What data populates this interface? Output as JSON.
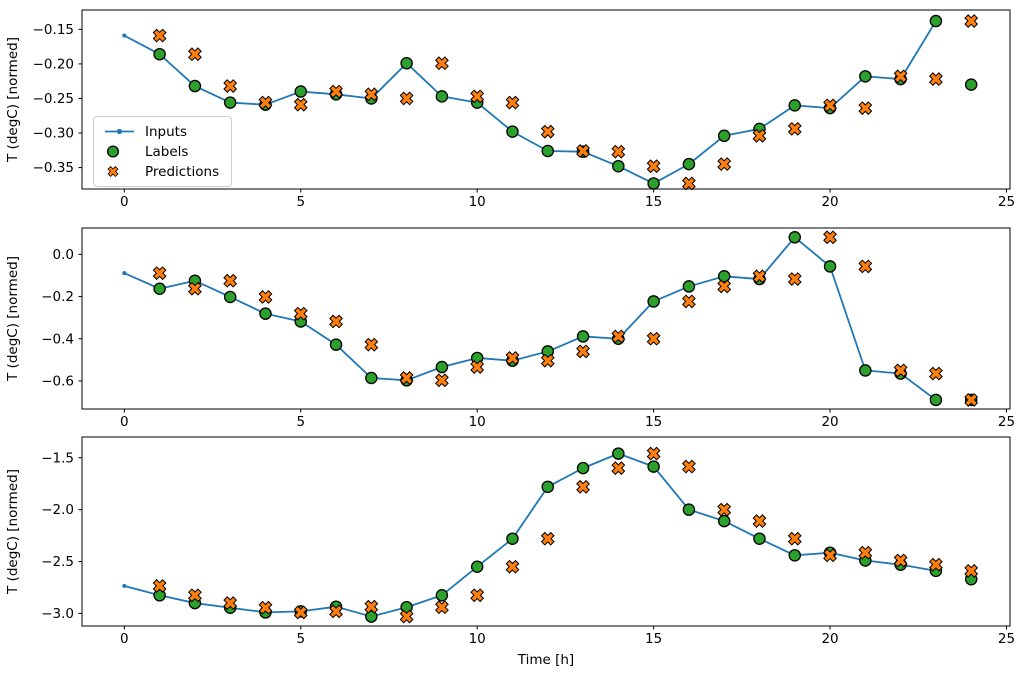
{
  "figure": {
    "background": "#ffffff",
    "frame_color": "#000000",
    "legend": {
      "items": [
        {
          "label": "Inputs",
          "marker": "line-with-dot",
          "color": "#1f77b4"
        },
        {
          "label": "Labels",
          "marker": "filled-circle",
          "color": "#2ca02c",
          "edge_color": "#000000"
        },
        {
          "label": "Predictions",
          "marker": "x-cross",
          "color": "#ff7f0e",
          "edge_color": "#000000"
        }
      ],
      "position": "upper-left-inside-first-subplot"
    }
  },
  "chart_data": [
    {
      "type": "line",
      "title": "",
      "ylabel": "T (degC) [normed]",
      "xlabel": "",
      "grid": false,
      "xlim": [
        -1.2,
        25.1
      ],
      "ylim": [
        -0.381,
        -0.122
      ],
      "xticks": [
        0,
        5,
        10,
        15,
        20,
        25
      ],
      "xtick_labels": [
        "0",
        "5",
        "10",
        "15",
        "20",
        "25"
      ],
      "yticks": [
        -0.15,
        -0.2,
        -0.25,
        -0.3,
        -0.35
      ],
      "ytick_labels": [
        "−0.15",
        "−0.20",
        "−0.25",
        "−0.30",
        "−0.35"
      ],
      "series": [
        {
          "name": "Inputs",
          "style": "line-with-dot",
          "color": "#1f77b4",
          "x": [
            0,
            1,
            2,
            3,
            4,
            5,
            6,
            7,
            8,
            9,
            10,
            11,
            12,
            13,
            14,
            15,
            16,
            17,
            18,
            19,
            20,
            21,
            22,
            23
          ],
          "y": [
            -0.159,
            -0.186,
            -0.232,
            -0.256,
            -0.259,
            -0.24,
            -0.244,
            -0.25,
            -0.199,
            -0.247,
            -0.256,
            -0.298,
            -0.326,
            -0.327,
            -0.348,
            -0.373,
            -0.345,
            -0.304,
            -0.294,
            -0.26,
            -0.264,
            -0.218,
            -0.222,
            -0.138
          ]
        },
        {
          "name": "Labels",
          "style": "filled-circle",
          "color": "#2ca02c",
          "edge_color": "#000000",
          "x": [
            1,
            2,
            3,
            4,
            5,
            6,
            7,
            8,
            9,
            10,
            11,
            12,
            13,
            14,
            15,
            16,
            17,
            18,
            19,
            20,
            21,
            22,
            23,
            24
          ],
          "y": [
            -0.186,
            -0.232,
            -0.256,
            -0.259,
            -0.24,
            -0.244,
            -0.25,
            -0.199,
            -0.247,
            -0.256,
            -0.298,
            -0.326,
            -0.327,
            -0.348,
            -0.373,
            -0.345,
            -0.304,
            -0.294,
            -0.26,
            -0.264,
            -0.218,
            -0.222,
            -0.138,
            -0.23
          ]
        },
        {
          "name": "Predictions",
          "style": "x-cross",
          "color": "#ff7f0e",
          "edge_color": "#000000",
          "x": [
            1,
            2,
            3,
            4,
            5,
            6,
            7,
            8,
            9,
            10,
            11,
            12,
            13,
            14,
            15,
            16,
            17,
            18,
            19,
            20,
            21,
            22,
            23,
            24
          ],
          "y": [
            -0.159,
            -0.186,
            -0.232,
            -0.256,
            -0.259,
            -0.24,
            -0.244,
            -0.25,
            -0.199,
            -0.247,
            -0.256,
            -0.298,
            -0.326,
            -0.327,
            -0.348,
            -0.373,
            -0.345,
            -0.304,
            -0.294,
            -0.26,
            -0.264,
            -0.218,
            -0.222,
            -0.138
          ]
        }
      ]
    },
    {
      "type": "line",
      "title": "",
      "ylabel": "T (degC) [normed]",
      "xlabel": "",
      "grid": false,
      "xlim": [
        -1.2,
        25.1
      ],
      "ylim": [
        -0.733,
        0.125
      ],
      "xticks": [
        0,
        5,
        10,
        15,
        20,
        25
      ],
      "xtick_labels": [
        "0",
        "5",
        "10",
        "15",
        "20",
        "25"
      ],
      "yticks": [
        0.0,
        -0.2,
        -0.4,
        -0.6
      ],
      "ytick_labels": [
        "0.0",
        "−0.2",
        "−0.4",
        "−0.6"
      ],
      "series": [
        {
          "name": "Inputs",
          "style": "line-with-dot",
          "color": "#1f77b4",
          "x": [
            0,
            1,
            2,
            3,
            4,
            5,
            6,
            7,
            8,
            9,
            10,
            11,
            12,
            13,
            14,
            15,
            16,
            17,
            18,
            19,
            20,
            21,
            22,
            23
          ],
          "y": [
            -0.089,
            -0.163,
            -0.125,
            -0.202,
            -0.281,
            -0.318,
            -0.428,
            -0.586,
            -0.597,
            -0.534,
            -0.491,
            -0.504,
            -0.46,
            -0.389,
            -0.4,
            -0.223,
            -0.152,
            -0.104,
            -0.117,
            0.081,
            -0.057,
            -0.55,
            -0.565,
            -0.69
          ]
        },
        {
          "name": "Labels",
          "style": "filled-circle",
          "color": "#2ca02c",
          "edge_color": "#000000",
          "x": [
            1,
            2,
            3,
            4,
            5,
            6,
            7,
            8,
            9,
            10,
            11,
            12,
            13,
            14,
            15,
            16,
            17,
            18,
            19,
            20,
            21,
            22,
            23,
            24
          ],
          "y": [
            -0.163,
            -0.125,
            -0.202,
            -0.281,
            -0.318,
            -0.428,
            -0.586,
            -0.597,
            -0.534,
            -0.491,
            -0.504,
            -0.46,
            -0.389,
            -0.4,
            -0.223,
            -0.152,
            -0.104,
            -0.117,
            0.081,
            -0.057,
            -0.55,
            -0.565,
            -0.69,
            -0.69
          ]
        },
        {
          "name": "Predictions",
          "style": "x-cross",
          "color": "#ff7f0e",
          "edge_color": "#000000",
          "x": [
            1,
            2,
            3,
            4,
            5,
            6,
            7,
            8,
            9,
            10,
            11,
            12,
            13,
            14,
            15,
            16,
            17,
            18,
            19,
            20,
            21,
            22,
            23,
            24
          ],
          "y": [
            -0.089,
            -0.163,
            -0.125,
            -0.202,
            -0.281,
            -0.318,
            -0.428,
            -0.586,
            -0.597,
            -0.534,
            -0.491,
            -0.504,
            -0.46,
            -0.389,
            -0.4,
            -0.223,
            -0.152,
            -0.104,
            -0.117,
            0.081,
            -0.057,
            -0.55,
            -0.565,
            -0.69
          ]
        }
      ]
    },
    {
      "type": "line",
      "title": "",
      "ylabel": "T (degC) [normed]",
      "xlabel": "Time [h]",
      "grid": false,
      "xlim": [
        -1.2,
        25.1
      ],
      "ylim": [
        -3.121,
        -1.3
      ],
      "xticks": [
        0,
        5,
        10,
        15,
        20,
        25
      ],
      "xtick_labels": [
        "0",
        "5",
        "10",
        "15",
        "20",
        "25"
      ],
      "yticks": [
        -1.5,
        -2.0,
        -2.5,
        -3.0
      ],
      "ytick_labels": [
        "−1.5",
        "−2.0",
        "−2.5",
        "−3.0"
      ],
      "series": [
        {
          "name": "Inputs",
          "style": "line-with-dot",
          "color": "#1f77b4",
          "x": [
            0,
            1,
            2,
            3,
            4,
            5,
            6,
            7,
            8,
            9,
            10,
            11,
            12,
            13,
            14,
            15,
            16,
            17,
            18,
            19,
            20,
            21,
            22,
            23
          ],
          "y": [
            -2.735,
            -2.825,
            -2.9,
            -2.945,
            -2.99,
            -2.98,
            -2.935,
            -3.03,
            -2.94,
            -2.825,
            -2.55,
            -2.28,
            -1.78,
            -1.6,
            -1.46,
            -1.585,
            -2.0,
            -2.11,
            -2.28,
            -2.44,
            -2.415,
            -2.49,
            -2.53,
            -2.59
          ]
        },
        {
          "name": "Labels",
          "style": "filled-circle",
          "color": "#2ca02c",
          "edge_color": "#000000",
          "x": [
            1,
            2,
            3,
            4,
            5,
            6,
            7,
            8,
            9,
            10,
            11,
            12,
            13,
            14,
            15,
            16,
            17,
            18,
            19,
            20,
            21,
            22,
            23,
            24
          ],
          "y": [
            -2.825,
            -2.9,
            -2.945,
            -2.99,
            -2.98,
            -2.935,
            -3.03,
            -2.94,
            -2.825,
            -2.55,
            -2.28,
            -1.78,
            -1.6,
            -1.46,
            -1.585,
            -2.0,
            -2.11,
            -2.28,
            -2.44,
            -2.415,
            -2.49,
            -2.53,
            -2.59,
            -2.67
          ]
        },
        {
          "name": "Predictions",
          "style": "x-cross",
          "color": "#ff7f0e",
          "edge_color": "#000000",
          "x": [
            1,
            2,
            3,
            4,
            5,
            6,
            7,
            8,
            9,
            10,
            11,
            12,
            13,
            14,
            15,
            16,
            17,
            18,
            19,
            20,
            21,
            22,
            23,
            24
          ],
          "y": [
            -2.735,
            -2.825,
            -2.9,
            -2.945,
            -2.99,
            -2.98,
            -2.935,
            -3.03,
            -2.94,
            -2.825,
            -2.55,
            -2.28,
            -1.78,
            -1.6,
            -1.46,
            -1.585,
            -2.0,
            -2.11,
            -2.28,
            -2.44,
            -2.415,
            -2.49,
            -2.53,
            -2.59
          ]
        }
      ]
    }
  ]
}
